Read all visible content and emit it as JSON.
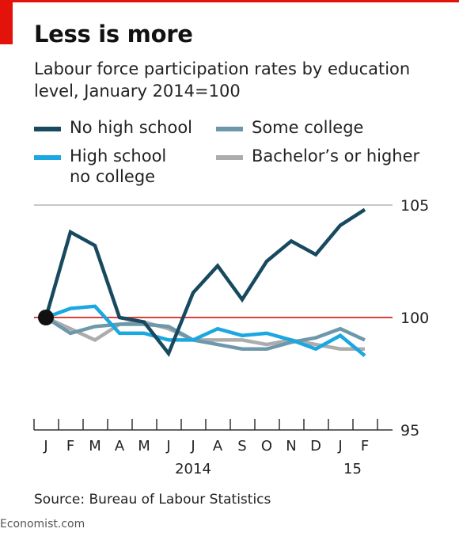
{
  "title": "Less is more",
  "subtitle": "Labour force participation rates by education level, January 2014=100",
  "source": "Source: Bureau of Labour Statistics",
  "brand": "Economist.com",
  "legend": [
    {
      "label": "No high school",
      "color": "#17495f"
    },
    {
      "label": "Some college",
      "color": "#6d98ab"
    },
    {
      "label": "High school\nno college",
      "color": "#1ba7e0"
    },
    {
      "label": "Bachelor’s or higher",
      "color": "#acacac"
    }
  ],
  "chart_data": {
    "type": "line",
    "x": [
      "J",
      "F",
      "M",
      "A",
      "M",
      "J",
      "J",
      "A",
      "S",
      "O",
      "N",
      "D",
      "J",
      "F"
    ],
    "year_labels": [
      {
        "label": "2014",
        "index": 6
      },
      {
        "label": "15",
        "index": 12.5
      }
    ],
    "ylim": [
      95,
      105
    ],
    "yticks": [
      95,
      100,
      105
    ],
    "reference_line": 100,
    "reference_color": "#e3120b",
    "series": [
      {
        "name": "No high school",
        "color": "#17495f",
        "values": [
          100,
          103.8,
          103.2,
          100,
          99.8,
          98.4,
          101.1,
          102.3,
          100.8,
          102.5,
          103.4,
          102.8,
          104.1,
          104.8
        ]
      },
      {
        "name": "Some college",
        "color": "#6d98ab",
        "values": [
          100,
          99.3,
          99.6,
          99.7,
          99.7,
          99.6,
          99.0,
          98.8,
          98.6,
          98.6,
          98.9,
          99.1,
          99.5,
          99.0
        ]
      },
      {
        "name": "High school\nno college",
        "color": "#1ba7e0",
        "values": [
          100,
          100.4,
          100.5,
          99.3,
          99.3,
          99.0,
          99.0,
          99.5,
          99.2,
          99.3,
          99.0,
          98.6,
          99.2,
          98.3
        ]
      },
      {
        "name": "Bachelor’s or higher",
        "color": "#acacac",
        "values": [
          100,
          99.5,
          99.0,
          99.7,
          99.8,
          99.5,
          99.0,
          99.0,
          99.0,
          98.8,
          99.0,
          98.8,
          98.6,
          98.6
        ]
      }
    ]
  }
}
